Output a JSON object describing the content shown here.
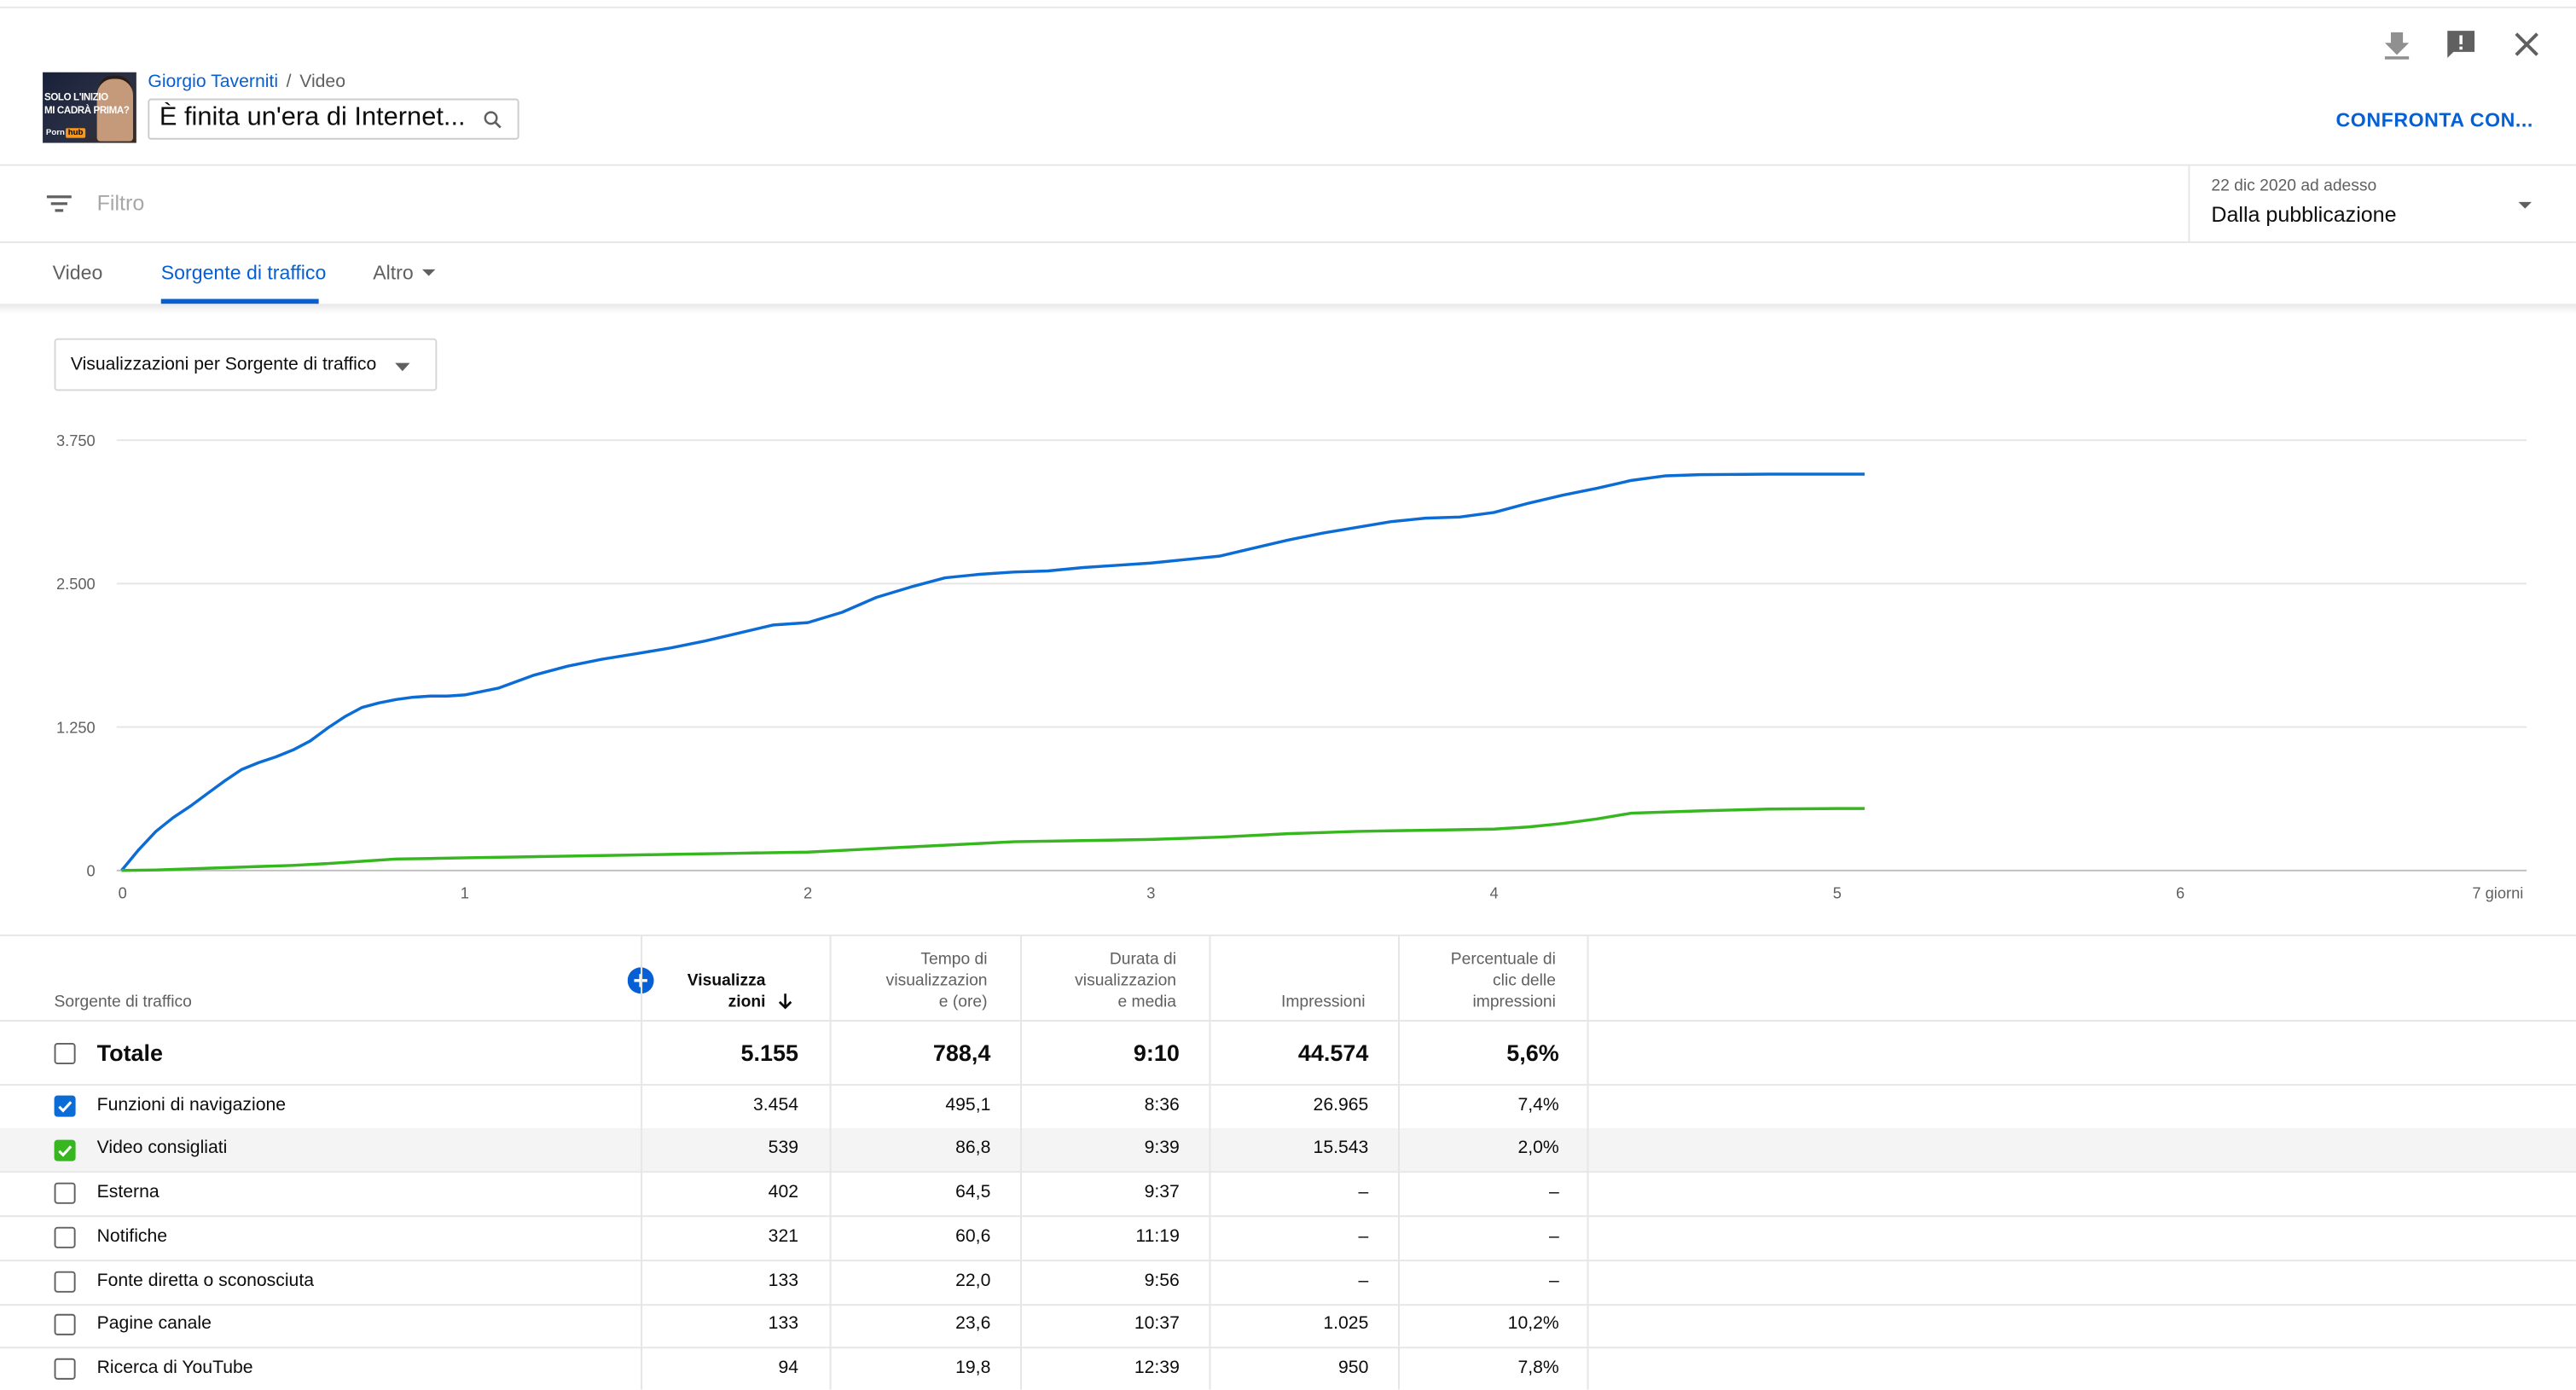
{
  "header": {
    "channel_name": "Giorgio Taverniti",
    "breadcrumb_sep": "/",
    "breadcrumb_section": "Video",
    "video_title": "È finita un'era di Internet...",
    "thumbnail_text": "SOLO L'INIZIO\nMI CADRÀ PRIMA?",
    "thumbnail_logo_prefix": "Porn",
    "thumbnail_logo_suffix": "hub",
    "compare_label": "CONFRONTA CON..."
  },
  "toolbar_icons": [
    "download-icon",
    "feedback-icon",
    "close-icon"
  ],
  "filter": {
    "placeholder": "Filtro",
    "date_range_caption": "22 dic 2020 ad adesso",
    "date_range_value": "Dalla pubblicazione"
  },
  "tabs": [
    {
      "label": "Video",
      "active": false
    },
    {
      "label": "Sorgente di traffico",
      "active": true
    },
    {
      "label": "Altro",
      "active": false
    }
  ],
  "metric_selector": "Visualizzazioni per Sorgente di traffico",
  "colors": {
    "accent": "#065fd4",
    "series_blue": "#0b6cd5",
    "series_green": "#37b71f"
  },
  "chart_data": {
    "type": "line",
    "title": "",
    "xlabel": "",
    "ylabel": "",
    "ylim": [
      0,
      3750
    ],
    "xlim": [
      0,
      7
    ],
    "y_ticks": [
      "0",
      "1.250",
      "2.500",
      "3.750"
    ],
    "x_ticks": [
      "0",
      "1",
      "2",
      "3",
      "4",
      "5",
      "6",
      "7 giorni"
    ],
    "grid": true,
    "series": [
      {
        "name": "Funzioni di navigazione",
        "color": "#0b6cd5",
        "x": [
          0,
          0.05,
          0.1,
          0.15,
          0.2,
          0.25,
          0.3,
          0.35,
          0.4,
          0.45,
          0.5,
          0.55,
          0.6,
          0.65,
          0.7,
          0.75,
          0.8,
          0.85,
          0.9,
          0.95,
          1.0,
          1.1,
          1.2,
          1.3,
          1.4,
          1.5,
          1.6,
          1.7,
          1.8,
          1.9,
          2.0,
          2.1,
          2.2,
          2.3,
          2.4,
          2.5,
          2.6,
          2.7,
          2.8,
          2.9,
          3.0,
          3.1,
          3.2,
          3.3,
          3.4,
          3.5,
          3.6,
          3.7,
          3.8,
          3.9,
          4.0,
          4.1,
          4.2,
          4.3,
          4.4,
          4.5,
          4.6,
          4.8,
          5.0,
          5.08
        ],
        "values": [
          0,
          180,
          340,
          460,
          560,
          670,
          780,
          880,
          940,
          990,
          1050,
          1130,
          1240,
          1340,
          1420,
          1460,
          1490,
          1510,
          1520,
          1520,
          1530,
          1590,
          1700,
          1780,
          1840,
          1890,
          1940,
          2000,
          2070,
          2140,
          2160,
          2250,
          2380,
          2470,
          2550,
          2580,
          2600,
          2610,
          2640,
          2660,
          2680,
          2710,
          2740,
          2810,
          2880,
          2940,
          2990,
          3040,
          3070,
          3080,
          3120,
          3200,
          3270,
          3330,
          3400,
          3440,
          3450,
          3454,
          3454,
          3454
        ]
      },
      {
        "name": "Video consigliati",
        "color": "#37b71f",
        "x": [
          0,
          0.1,
          0.2,
          0.3,
          0.4,
          0.5,
          0.6,
          0.7,
          0.8,
          0.9,
          1.0,
          1.2,
          1.4,
          1.6,
          1.8,
          2.0,
          2.2,
          2.4,
          2.6,
          2.8,
          3.0,
          3.2,
          3.4,
          3.6,
          3.8,
          4.0,
          4.1,
          4.2,
          4.3,
          4.4,
          4.6,
          4.8,
          5.0,
          5.08
        ],
        "values": [
          0,
          5,
          15,
          25,
          35,
          45,
          60,
          80,
          100,
          105,
          110,
          120,
          130,
          140,
          150,
          160,
          190,
          220,
          250,
          260,
          270,
          290,
          320,
          340,
          350,
          360,
          380,
          410,
          450,
          500,
          520,
          535,
          539,
          539
        ]
      }
    ]
  },
  "table": {
    "add_metric_icon": "plus-circle-icon",
    "headers": [
      "Sorgente di traffico",
      "Visualizza\nzioni",
      "Tempo di\nvisualizzazion\ne (ore)",
      "Durata di\nvisualizzazion\ne media",
      "Impressioni",
      "Percentuale di\nclic delle\nimpressioni"
    ],
    "sort_icon": "arrow-down-icon",
    "total": {
      "label": "Totale",
      "views": "5.155",
      "hours": "788,4",
      "avg": "9:10",
      "impressions": "44.574",
      "ctr": "5,6%",
      "checked": false
    },
    "rows": [
      {
        "label": "Funzioni di navigazione",
        "views": "3.454",
        "hours": "495,1",
        "avg": "8:36",
        "impressions": "26.965",
        "ctr": "7,4%",
        "checked": true,
        "check_color": "#0b6cd5",
        "highlight": false
      },
      {
        "label": "Video consigliati",
        "views": "539",
        "hours": "86,8",
        "avg": "9:39",
        "impressions": "15.543",
        "ctr": "2,0%",
        "checked": true,
        "check_color": "#37b71f",
        "highlight": true
      },
      {
        "label": "Esterna",
        "views": "402",
        "hours": "64,5",
        "avg": "9:37",
        "impressions": "–",
        "ctr": "–",
        "checked": false,
        "highlight": false
      },
      {
        "label": "Notifiche",
        "views": "321",
        "hours": "60,6",
        "avg": "11:19",
        "impressions": "–",
        "ctr": "–",
        "checked": false,
        "highlight": false
      },
      {
        "label": "Fonte diretta o sconosciuta",
        "views": "133",
        "hours": "22,0",
        "avg": "9:56",
        "impressions": "–",
        "ctr": "–",
        "checked": false,
        "highlight": false
      },
      {
        "label": "Pagine canale",
        "views": "133",
        "hours": "23,6",
        "avg": "10:37",
        "impressions": "1.025",
        "ctr": "10,2%",
        "checked": false,
        "highlight": false
      },
      {
        "label": "Ricerca di YouTube",
        "views": "94",
        "hours": "19,8",
        "avg": "12:39",
        "impressions": "950",
        "ctr": "7,8%",
        "checked": false,
        "highlight": false
      }
    ]
  }
}
